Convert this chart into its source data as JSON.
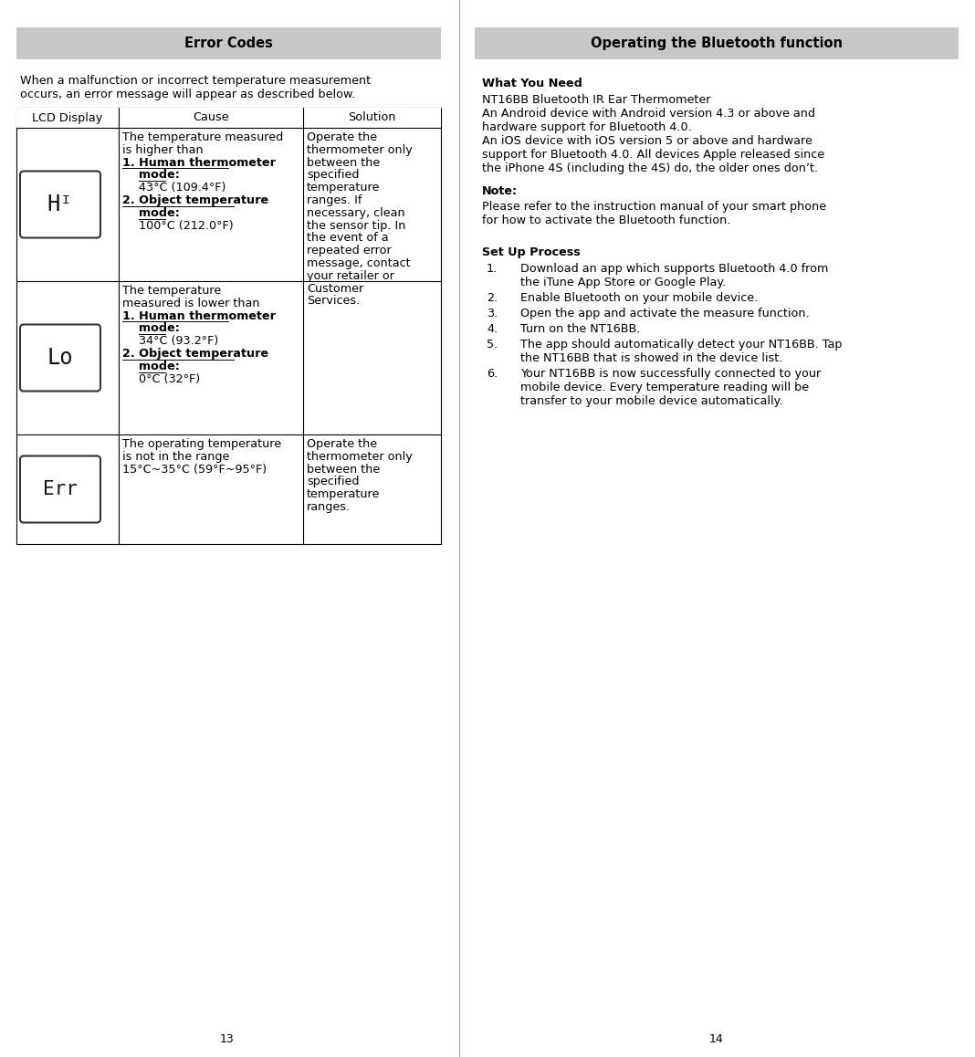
{
  "left_title": "Error Codes",
  "right_title": "Operating the Bluetooth function",
  "left_intro_line1": "When a malfunction or incorrect temperature measurement",
  "left_intro_line2": "occurs, an error message will appear as described below.",
  "table_headers": [
    "LCD Display",
    "Cause",
    "Solution"
  ],
  "row1_cause_lines": [
    [
      "The temperature measured",
      false
    ],
    [
      "is higher than",
      false
    ],
    [
      "1. Human thermometer",
      true
    ],
    [
      "    mode:",
      true
    ],
    [
      "    43°C (109.4°F)",
      false
    ],
    [
      "2. Object temperature",
      true
    ],
    [
      "    mode:",
      true
    ],
    [
      "    100°C (212.0°F)",
      false
    ]
  ],
  "row2_cause_lines": [
    [
      "The temperature",
      false
    ],
    [
      "measured is lower than",
      false
    ],
    [
      "1. Human thermometer",
      true
    ],
    [
      "    mode:",
      true
    ],
    [
      "    34°C (93.2°F)",
      false
    ],
    [
      "2. Object temperature",
      true
    ],
    [
      "    mode:",
      true
    ],
    [
      "    0°C (32°F)",
      false
    ]
  ],
  "row3_cause_lines": [
    [
      "The operating temperature",
      false
    ],
    [
      "is not in the range",
      false
    ],
    [
      "15°C~35°C (59°F~95°F)",
      false
    ]
  ],
  "solution_rows12": [
    "Operate the",
    "thermometer only",
    "between the",
    "specified",
    "temperature",
    "ranges. If",
    "necessary, clean",
    "the sensor tip. In",
    "the event of a",
    "repeated error",
    "message, contact",
    "your retailer or",
    "Customer",
    "Services."
  ],
  "solution_row3": [
    "Operate the",
    "thermometer only",
    "between the",
    "specified",
    "temperature",
    "ranges."
  ],
  "right_what_you_need_title": "What You Need",
  "right_what_you_need_lines": [
    "NT16BB Bluetooth IR Ear Thermometer",
    "An Android device with Android version 4.3 or above and",
    "hardware support for Bluetooth 4.0.",
    "An iOS device with iOS version 5 or above and hardware",
    "support for Bluetooth 4.0. All devices Apple released since",
    "the iPhone 4S (including the 4S) do, the older ones don’t."
  ],
  "right_note_title": "Note:",
  "right_note_lines": [
    "Please refer to the instruction manual of your smart phone",
    "for how to activate the Bluetooth function."
  ],
  "right_setup_title": "Set Up Process",
  "right_setup_items": [
    [
      "Download an app which supports Bluetooth 4.0 from",
      "the iTune App Store or Google Play."
    ],
    [
      "Enable Bluetooth on your mobile device."
    ],
    [
      "Open the app and activate the measure function."
    ],
    [
      "Turn on the NT16BB."
    ],
    [
      "The app should automatically detect your NT16BB. Tap",
      "the NT16BB that is showed in the device list."
    ],
    [
      "Your NT16BB is now successfully connected to your",
      "mobile device. Every temperature reading will be",
      "transfer to your mobile device automatically."
    ]
  ],
  "page_left": "13",
  "page_right": "14",
  "header_bg": "#c8c8c8",
  "header_text_color": "#000000",
  "bg_color": "#ffffff",
  "text_color": "#000000"
}
